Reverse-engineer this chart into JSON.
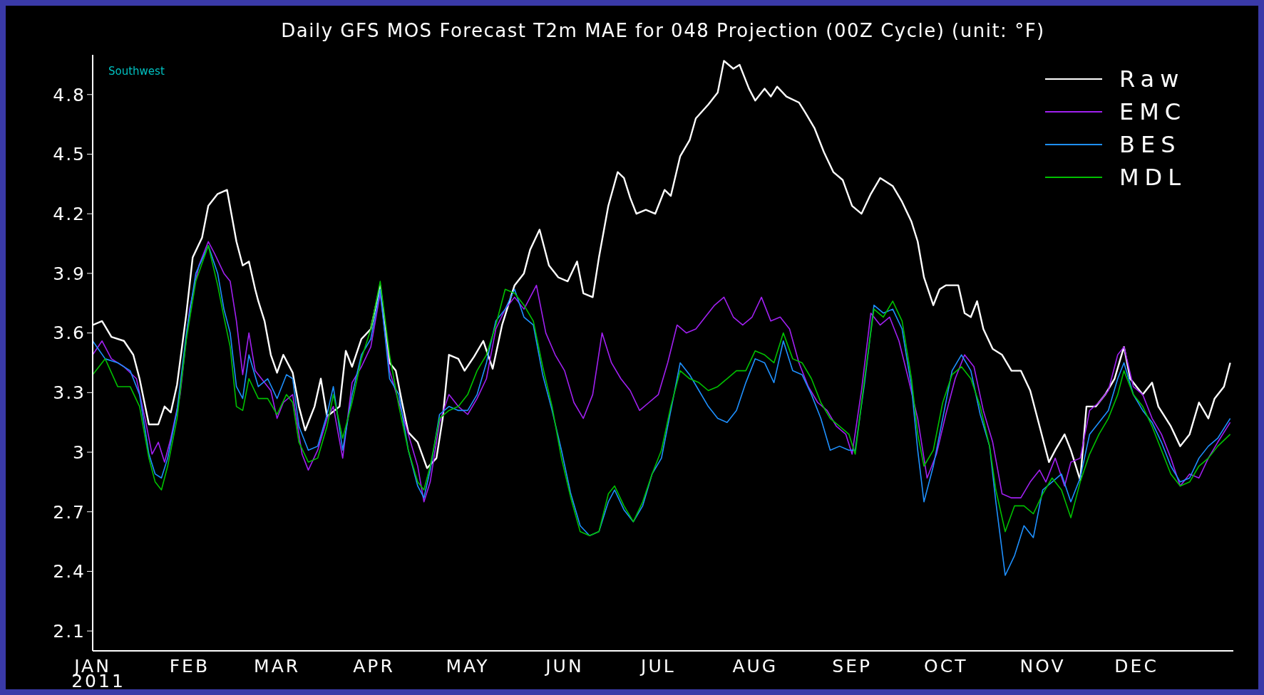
{
  "chart_data": {
    "type": "line",
    "title": "Daily GFS MOS Forecast T2m MAE for 048 Projection (00Z Cycle) (unit: °F)",
    "annotations": [
      "Southwest"
    ],
    "legend": "top right",
    "xlim": [
      "2011-01-01",
      "2012-01-01"
    ],
    "xticks": [
      {
        "value": "2011-01-01",
        "label": "JAN\n2011"
      },
      {
        "value": "2011-02-01",
        "label": "FEB"
      },
      {
        "value": "2011-03-01",
        "label": "MAR"
      },
      {
        "value": "2011-04-01",
        "label": "APR"
      },
      {
        "value": "2011-05-01",
        "label": "MAY"
      },
      {
        "value": "2011-06-01",
        "label": "JUN"
      },
      {
        "value": "2011-07-01",
        "label": "JUL"
      },
      {
        "value": "2011-08-01",
        "label": "AUG"
      },
      {
        "value": "2011-09-01",
        "label": "SEP"
      },
      {
        "value": "2011-10-01",
        "label": "OCT"
      },
      {
        "value": "2011-11-01",
        "label": "NOV"
      },
      {
        "value": "2011-12-01",
        "label": "DEC"
      }
    ],
    "ylim": [
      2.0,
      5.0
    ],
    "yticks": [
      2.1,
      2.4,
      2.7,
      3,
      3.3,
      3.6,
      3.9,
      4.2,
      4.5,
      4.8
    ],
    "x": [
      "2011-01-01",
      "2011-01-05",
      "2011-01-09",
      "2011-01-13",
      "2011-01-16",
      "2011-01-19",
      "2011-01-21",
      "2011-01-23",
      "2011-01-25",
      "2011-01-28",
      "2011-01-31",
      "2011-02-03",
      "2011-02-07",
      "2011-02-10",
      "2011-02-12",
      "2011-02-14",
      "2011-02-16",
      "2011-02-18",
      "2011-02-20",
      "2011-02-23",
      "2011-02-26",
      "2011-03-01",
      "2011-03-04",
      "2011-03-06",
      "2011-03-08",
      "2011-03-11",
      "2011-03-14",
      "2011-03-17",
      "2011-03-19",
      "2011-03-22",
      "2011-03-25",
      "2011-03-28",
      "2011-03-31",
      "2011-04-03",
      "2011-04-06",
      "2011-04-09",
      "2011-04-12",
      "2011-04-15",
      "2011-04-17",
      "2011-04-19",
      "2011-04-22",
      "2011-04-25",
      "2011-04-28",
      "2011-05-01",
      "2011-05-04",
      "2011-05-07",
      "2011-05-10",
      "2011-05-13",
      "2011-05-16",
      "2011-05-19",
      "2011-05-22",
      "2011-05-25",
      "2011-05-28",
      "2011-05-31",
      "2011-06-03",
      "2011-06-06",
      "2011-06-09",
      "2011-06-12",
      "2011-06-15",
      "2011-06-17",
      "2011-06-20",
      "2011-06-23",
      "2011-06-26",
      "2011-06-29",
      "2011-07-02",
      "2011-07-05",
      "2011-07-08",
      "2011-07-11",
      "2011-07-14",
      "2011-07-17",
      "2011-07-20",
      "2011-07-23",
      "2011-07-26",
      "2011-07-29",
      "2011-08-01",
      "2011-08-04",
      "2011-08-07",
      "2011-08-10",
      "2011-08-13",
      "2011-08-16",
      "2011-08-19",
      "2011-08-22",
      "2011-08-25",
      "2011-08-28",
      "2011-08-31",
      "2011-09-02",
      "2011-09-05",
      "2011-09-08",
      "2011-09-11",
      "2011-09-14",
      "2011-09-17",
      "2011-09-20",
      "2011-09-22",
      "2011-09-24",
      "2011-09-27",
      "2011-09-30",
      "2011-10-03",
      "2011-10-06",
      "2011-10-09",
      "2011-10-12",
      "2011-10-15",
      "2011-10-17",
      "2011-10-20",
      "2011-10-23",
      "2011-10-26",
      "2011-10-29",
      "2011-11-01",
      "2011-11-04",
      "2011-11-07",
      "2011-11-10",
      "2011-11-13",
      "2011-11-16",
      "2011-11-19",
      "2011-11-22",
      "2011-11-25",
      "2011-11-27",
      "2011-11-30",
      "2011-12-03",
      "2011-12-06",
      "2011-12-09",
      "2011-12-12",
      "2011-12-15",
      "2011-12-18",
      "2011-12-21",
      "2011-12-24",
      "2011-12-27",
      "2011-12-31"
    ],
    "series": [
      {
        "name": "Raw",
        "color": "#ffffff",
        "x": [
          "2011-01-01",
          "2011-01-04",
          "2011-01-07",
          "2011-01-11",
          "2011-01-14",
          "2011-01-16",
          "2011-01-19",
          "2011-01-22",
          "2011-01-24",
          "2011-01-26",
          "2011-01-28",
          "2011-01-31",
          "2011-02-02",
          "2011-02-05",
          "2011-02-07",
          "2011-02-10",
          "2011-02-13",
          "2011-02-16",
          "2011-02-18",
          "2011-02-20",
          "2011-02-22",
          "2011-02-23",
          "2011-02-25",
          "2011-02-27",
          "2011-03-01",
          "2011-03-03",
          "2011-03-06",
          "2011-03-08",
          "2011-03-10",
          "2011-03-13",
          "2011-03-15",
          "2011-03-17",
          "2011-03-21",
          "2011-03-23",
          "2011-03-25",
          "2011-03-28",
          "2011-03-31",
          "2011-04-03",
          "2011-04-06",
          "2011-04-08",
          "2011-04-10",
          "2011-04-12",
          "2011-04-15",
          "2011-04-18",
          "2011-04-21",
          "2011-04-23",
          "2011-04-25",
          "2011-04-28",
          "2011-04-30",
          "2011-05-03",
          "2011-05-06",
          "2011-05-09",
          "2011-05-12",
          "2011-05-16",
          "2011-05-19",
          "2011-05-21",
          "2011-05-24",
          "2011-05-27",
          "2011-05-30",
          "2011-06-02",
          "2011-06-05",
          "2011-06-07",
          "2011-06-10",
          "2011-06-12",
          "2011-06-15",
          "2011-06-18",
          "2011-06-20",
          "2011-06-22",
          "2011-06-24",
          "2011-06-27",
          "2011-06-30",
          "2011-07-03",
          "2011-07-05",
          "2011-07-08",
          "2011-07-11",
          "2011-07-13",
          "2011-07-17",
          "2011-07-20",
          "2011-07-22",
          "2011-07-25",
          "2011-07-27",
          "2011-07-30",
          "2011-08-01",
          "2011-08-04",
          "2011-08-06",
          "2011-08-08",
          "2011-08-11",
          "2011-08-15",
          "2011-08-17",
          "2011-08-20",
          "2011-08-23",
          "2011-08-26",
          "2011-08-29",
          "2011-09-01",
          "2011-09-04",
          "2011-09-07",
          "2011-09-10",
          "2011-09-14",
          "2011-09-17",
          "2011-09-20",
          "2011-09-22",
          "2011-09-24",
          "2011-09-27",
          "2011-09-29",
          "2011-10-01",
          "2011-10-05",
          "2011-10-07",
          "2011-10-09",
          "2011-10-11",
          "2011-10-13",
          "2011-10-16",
          "2011-10-19",
          "2011-10-22",
          "2011-10-25",
          "2011-10-28",
          "2011-10-31",
          "2011-11-03",
          "2011-11-05",
          "2011-11-08",
          "2011-11-10",
          "2011-11-13",
          "2011-11-15",
          "2011-11-18",
          "2011-11-21",
          "2011-11-24",
          "2011-11-27",
          "2011-11-29",
          "2011-12-03",
          "2011-12-06",
          "2011-12-08",
          "2011-12-12",
          "2011-12-15",
          "2011-12-18",
          "2011-12-21",
          "2011-12-24",
          "2011-12-26",
          "2011-12-29",
          "2011-12-31"
        ],
        "values": [
          3.64,
          3.66,
          3.58,
          3.56,
          3.49,
          3.37,
          3.14,
          3.14,
          3.23,
          3.2,
          3.34,
          3.7,
          3.98,
          4.08,
          4.24,
          4.3,
          4.32,
          4.06,
          3.94,
          3.96,
          3.82,
          3.76,
          3.66,
          3.49,
          3.4,
          3.49,
          3.4,
          3.23,
          3.11,
          3.23,
          3.37,
          3.18,
          3.23,
          3.51,
          3.43,
          3.57,
          3.62,
          3.84,
          3.45,
          3.41,
          3.25,
          3.1,
          3.05,
          2.92,
          2.97,
          3.17,
          3.49,
          3.47,
          3.41,
          3.48,
          3.56,
          3.42,
          3.64,
          3.84,
          3.9,
          4.02,
          4.12,
          3.94,
          3.88,
          3.86,
          3.96,
          3.8,
          3.78,
          3.98,
          4.24,
          4.41,
          4.38,
          4.28,
          4.2,
          4.22,
          4.2,
          4.32,
          4.29,
          4.49,
          4.57,
          4.68,
          4.75,
          4.81,
          4.97,
          4.93,
          4.95,
          4.83,
          4.77,
          4.83,
          4.79,
          4.84,
          4.79,
          4.76,
          4.71,
          4.63,
          4.51,
          4.41,
          4.37,
          4.24,
          4.2,
          4.3,
          4.38,
          4.34,
          4.26,
          4.16,
          4.06,
          3.88,
          3.74,
          3.82,
          3.84,
          3.84,
          3.7,
          3.68,
          3.76,
          3.62,
          3.52,
          3.49,
          3.41,
          3.41,
          3.31,
          3.13,
          2.95,
          3.01,
          3.09,
          3.01,
          2.86,
          3.23,
          3.23,
          3.29,
          3.37,
          3.53,
          3.37,
          3.29,
          3.35,
          3.23,
          3.13,
          3.03,
          3.09,
          3.25,
          3.17,
          3.27,
          3.33,
          3.45
        ]
      },
      {
        "name": "EMC",
        "color": "#a020f0",
        "x": [
          "2011-01-01",
          "2011-01-04",
          "2011-01-07",
          "2011-01-11",
          "2011-01-15",
          "2011-01-18",
          "2011-01-20",
          "2011-01-22",
          "2011-01-24",
          "2011-01-26",
          "2011-01-29",
          "2011-02-01",
          "2011-02-04",
          "2011-02-07",
          "2011-02-09",
          "2011-02-12",
          "2011-02-14",
          "2011-02-16",
          "2011-02-18",
          "2011-02-20",
          "2011-02-22",
          "2011-02-25",
          "2011-02-27",
          "2011-03-01",
          "2011-03-03",
          "2011-03-06",
          "2011-03-09",
          "2011-03-11",
          "2011-03-14",
          "2011-03-17",
          "2011-03-19",
          "2011-03-22",
          "2011-03-25",
          "2011-03-28",
          "2011-03-31",
          "2011-04-03",
          "2011-04-06",
          "2011-04-09",
          "2011-04-12",
          "2011-04-15",
          "2011-04-17",
          "2011-04-19",
          "2011-04-22",
          "2011-04-25",
          "2011-04-28",
          "2011-05-01",
          "2011-05-04",
          "2011-05-07",
          "2011-05-10",
          "2011-05-13",
          "2011-05-16",
          "2011-05-19",
          "2011-05-23",
          "2011-05-26",
          "2011-05-29",
          "2011-06-01",
          "2011-06-04",
          "2011-06-07",
          "2011-06-10",
          "2011-06-13",
          "2011-06-16",
          "2011-06-19",
          "2011-06-22",
          "2011-06-25",
          "2011-06-28",
          "2011-07-01",
          "2011-07-04",
          "2011-07-07",
          "2011-07-10",
          "2011-07-13",
          "2011-07-16",
          "2011-07-19",
          "2011-07-22",
          "2011-07-25",
          "2011-07-28",
          "2011-07-31",
          "2011-08-03",
          "2011-08-06",
          "2011-08-09",
          "2011-08-12",
          "2011-08-15",
          "2011-08-18",
          "2011-08-21",
          "2011-08-24",
          "2011-08-27",
          "2011-08-30",
          "2011-09-01",
          "2011-09-04",
          "2011-09-07",
          "2011-09-10",
          "2011-09-13",
          "2011-09-16",
          "2011-09-19",
          "2011-09-22",
          "2011-09-25",
          "2011-09-28",
          "2011-10-01",
          "2011-10-04",
          "2011-10-07",
          "2011-10-10",
          "2011-10-13",
          "2011-10-16",
          "2011-10-19",
          "2011-10-22",
          "2011-10-25",
          "2011-10-28",
          "2011-10-31",
          "2011-11-02",
          "2011-11-05",
          "2011-11-08",
          "2011-11-10",
          "2011-11-13",
          "2011-11-16",
          "2011-11-19",
          "2011-11-22",
          "2011-11-25",
          "2011-11-27",
          "2011-11-30",
          "2011-12-03",
          "2011-12-06",
          "2011-12-09",
          "2011-12-12",
          "2011-12-15",
          "2011-12-18",
          "2011-12-21",
          "2011-12-24",
          "2011-12-27",
          "2011-12-31"
        ],
        "values": [
          3.49,
          3.56,
          3.47,
          3.43,
          3.37,
          3.15,
          2.99,
          3.05,
          2.95,
          3.07,
          3.29,
          3.72,
          3.94,
          4.06,
          4.0,
          3.9,
          3.86,
          3.66,
          3.39,
          3.6,
          3.41,
          3.35,
          3.31,
          3.17,
          3.25,
          3.29,
          2.99,
          2.91,
          3.01,
          3.17,
          3.23,
          2.97,
          3.35,
          3.43,
          3.53,
          3.8,
          3.41,
          3.25,
          3.09,
          2.93,
          2.75,
          2.85,
          3.15,
          3.29,
          3.23,
          3.19,
          3.27,
          3.37,
          3.62,
          3.72,
          3.78,
          3.72,
          3.84,
          3.6,
          3.49,
          3.41,
          3.25,
          3.17,
          3.29,
          3.6,
          3.45,
          3.37,
          3.31,
          3.21,
          3.25,
          3.29,
          3.45,
          3.64,
          3.6,
          3.62,
          3.68,
          3.74,
          3.78,
          3.68,
          3.64,
          3.68,
          3.78,
          3.66,
          3.68,
          3.62,
          3.45,
          3.33,
          3.25,
          3.21,
          3.13,
          3.09,
          2.99,
          3.31,
          3.7,
          3.64,
          3.68,
          3.56,
          3.37,
          3.17,
          2.87,
          2.99,
          3.19,
          3.37,
          3.49,
          3.43,
          3.21,
          3.05,
          2.79,
          2.77,
          2.77,
          2.85,
          2.91,
          2.85,
          2.97,
          2.83,
          2.95,
          2.97,
          3.21,
          3.25,
          3.31,
          3.49,
          3.53,
          3.33,
          3.29,
          3.17,
          3.09,
          2.97,
          2.83,
          2.89,
          2.87,
          2.97,
          3.05,
          3.15
        ]
      },
      {
        "name": "BES",
        "color": "#1e90ff",
        "values": [
          3.56,
          3.47,
          3.45,
          3.41,
          3.29,
          2.99,
          2.89,
          2.87,
          2.97,
          3.21,
          3.6,
          3.9,
          4.04,
          3.9,
          3.72,
          3.6,
          3.33,
          3.27,
          3.49,
          3.33,
          3.37,
          3.27,
          3.39,
          3.37,
          3.13,
          3.01,
          3.03,
          3.19,
          3.33,
          3.01,
          3.29,
          3.49,
          3.57,
          3.82,
          3.37,
          3.29,
          3.01,
          2.83,
          2.77,
          2.91,
          3.19,
          3.23,
          3.21,
          3.21,
          3.29,
          3.45,
          3.66,
          3.72,
          3.82,
          3.68,
          3.64,
          3.39,
          3.21,
          3.01,
          2.79,
          2.63,
          2.58,
          2.6,
          2.75,
          2.81,
          2.71,
          2.65,
          2.73,
          2.89,
          2.97,
          3.21,
          3.45,
          3.39,
          3.31,
          3.23,
          3.17,
          3.15,
          3.21,
          3.35,
          3.47,
          3.45,
          3.35,
          3.56,
          3.41,
          3.39,
          3.29,
          3.17,
          3.01,
          3.03,
          3.01,
          3.01,
          3.35,
          3.74,
          3.7,
          3.72,
          3.62,
          3.33,
          3.01,
          2.75,
          2.93,
          3.17,
          3.41,
          3.49,
          3.41,
          3.19,
          3.03,
          2.75,
          2.38,
          2.48,
          2.63,
          2.57,
          2.81,
          2.85,
          2.89,
          2.75,
          2.87,
          3.09,
          3.15,
          3.21,
          3.37,
          3.45,
          3.29,
          3.21,
          3.15,
          3.05,
          2.93,
          2.85,
          2.87,
          2.97,
          3.03,
          3.07,
          3.17
        ]
      },
      {
        "name": "MDL",
        "color": "#00c000",
        "values": [
          3.39,
          3.47,
          3.33,
          3.33,
          3.23,
          2.97,
          2.85,
          2.81,
          2.93,
          3.17,
          3.57,
          3.86,
          4.04,
          3.84,
          3.68,
          3.53,
          3.23,
          3.21,
          3.37,
          3.27,
          3.27,
          3.19,
          3.29,
          3.25,
          3.05,
          2.95,
          2.97,
          3.13,
          3.29,
          3.07,
          3.25,
          3.47,
          3.62,
          3.86,
          3.49,
          3.23,
          3.01,
          2.85,
          2.81,
          2.93,
          3.17,
          3.21,
          3.23,
          3.29,
          3.41,
          3.49,
          3.64,
          3.82,
          3.8,
          3.74,
          3.66,
          3.43,
          3.23,
          2.97,
          2.77,
          2.6,
          2.58,
          2.6,
          2.79,
          2.83,
          2.73,
          2.65,
          2.75,
          2.89,
          3.01,
          3.23,
          3.41,
          3.37,
          3.35,
          3.31,
          3.33,
          3.37,
          3.41,
          3.41,
          3.51,
          3.49,
          3.45,
          3.6,
          3.47,
          3.45,
          3.37,
          3.25,
          3.17,
          3.13,
          3.09,
          2.99,
          3.37,
          3.72,
          3.68,
          3.76,
          3.66,
          3.37,
          3.09,
          2.93,
          3.01,
          3.25,
          3.39,
          3.43,
          3.37,
          3.23,
          3.03,
          2.81,
          2.6,
          2.73,
          2.73,
          2.69,
          2.79,
          2.87,
          2.81,
          2.67,
          2.85,
          2.99,
          3.09,
          3.17,
          3.29,
          3.41,
          3.29,
          3.23,
          3.13,
          3.01,
          2.89,
          2.83,
          2.85,
          2.93,
          2.97,
          3.03,
          3.09
        ]
      }
    ]
  }
}
